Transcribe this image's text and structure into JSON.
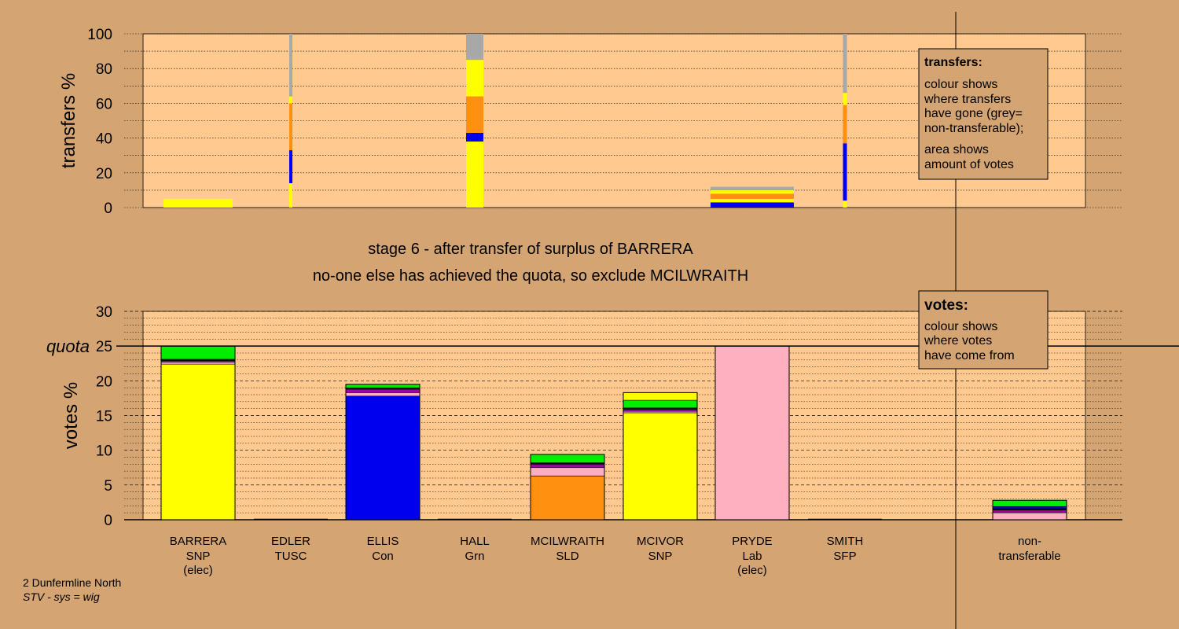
{
  "colors": {
    "background": "#d4a572",
    "plot_area": "#ffc990",
    "SNP": "#ffff00",
    "Con": "#0000ee",
    "SLD": "#ff9010",
    "Lab": "#ffb0c0",
    "Grn": "#00ee00",
    "TUSC": "#a000a0",
    "SFP": "#000000",
    "non_transferable": "#a8a8a8"
  },
  "transfers_legend": {
    "title": "transfers:",
    "lines": [
      "colour shows",
      "where transfers",
      "have gone (grey=",
      "non-transferable);",
      "area shows",
      "amount of votes"
    ]
  },
  "votes_legend": {
    "title": "votes:",
    "lines": [
      "colour shows",
      "where votes",
      "have come from"
    ]
  },
  "stage_title": "stage 6 - after transfer of surplus of BARRERA",
  "stage_subtitle": "no-one else has achieved the quota, so exclude MCILWRAITH",
  "footer": {
    "line1": "2 Dunfermline North",
    "line2": "STV - sys = wig"
  },
  "candidates": [
    {
      "name": "BARRERA",
      "party": "SNP",
      "note": "(elec)"
    },
    {
      "name": "EDLER",
      "party": "TUSC",
      "note": ""
    },
    {
      "name": "ELLIS",
      "party": "Con",
      "note": ""
    },
    {
      "name": "HALL",
      "party": "Grn",
      "note": ""
    },
    {
      "name": "MCILWRAITH",
      "party": "SLD",
      "note": ""
    },
    {
      "name": "MCIVOR",
      "party": "SNP",
      "note": ""
    },
    {
      "name": "PRYDE",
      "party": "Lab",
      "note": "(elec)"
    },
    {
      "name": "SMITH",
      "party": "SFP",
      "note": ""
    },
    {
      "name": "non-",
      "party": "transferable",
      "note": ""
    }
  ],
  "chart_data": [
    {
      "type": "bar",
      "title": "transfers",
      "ylabel": "transfers %",
      "ylim": [
        0,
        100
      ],
      "yticks": [
        0,
        20,
        40,
        60,
        80,
        100
      ],
      "description_bars": [
        {
          "candidate": "BARRERA",
          "segments": [
            {
              "color": "SNP",
              "from": 0,
              "to": 5
            }
          ]
        },
        {
          "candidate": "EDLER",
          "segments": [
            {
              "color": "SNP",
              "from": 0,
              "to": 14
            },
            {
              "color": "Con",
              "from": 14,
              "to": 33
            },
            {
              "color": "SLD",
              "from": 33,
              "to": 60
            },
            {
              "color": "SNP",
              "from": 60,
              "to": 64
            },
            {
              "color": "non_transferable",
              "from": 64,
              "to": 100
            }
          ]
        },
        {
          "candidate": "HALL",
          "segments": [
            {
              "color": "SNP",
              "from": 0,
              "to": 38
            },
            {
              "color": "Con",
              "from": 38,
              "to": 43
            },
            {
              "color": "SLD",
              "from": 43,
              "to": 64
            },
            {
              "color": "SNP",
              "from": 64,
              "to": 85
            },
            {
              "color": "non_transferable",
              "from": 85,
              "to": 100
            }
          ]
        },
        {
          "candidate": "PRYDE",
          "segments": [
            {
              "color": "Con",
              "from": 0,
              "to": 3
            },
            {
              "color": "SNP",
              "from": 3,
              "to": 5
            },
            {
              "color": "SLD",
              "from": 5,
              "to": 8
            },
            {
              "color": "SNP",
              "from": 8,
              "to": 10
            },
            {
              "color": "non_transferable",
              "from": 10,
              "to": 12
            }
          ]
        },
        {
          "candidate": "SMITH",
          "segments": [
            {
              "color": "SNP",
              "from": 0,
              "to": 4
            },
            {
              "color": "Con",
              "from": 4,
              "to": 37
            },
            {
              "color": "SLD",
              "from": 37,
              "to": 59
            },
            {
              "color": "SNP",
              "from": 59,
              "to": 66
            },
            {
              "color": "non_transferable",
              "from": 66,
              "to": 100
            }
          ]
        }
      ]
    },
    {
      "type": "bar",
      "title": "votes",
      "ylabel": "votes %",
      "ylim": [
        0,
        30
      ],
      "yticks": [
        0,
        5,
        10,
        15,
        20,
        25,
        30
      ],
      "quota": 25,
      "quota_label": "quota",
      "stacked_bars": [
        {
          "candidate": "BARRERA",
          "segments": [
            {
              "color": "SNP",
              "value": 22.4
            },
            {
              "color": "Lab",
              "value": 0.3
            },
            {
              "color": "TUSC",
              "value": 0.2
            },
            {
              "color": "SFP",
              "value": 0.2
            },
            {
              "color": "Grn",
              "value": 1.9
            }
          ]
        },
        {
          "candidate": "EDLER",
          "segments": []
        },
        {
          "candidate": "ELLIS",
          "segments": [
            {
              "color": "Con",
              "value": 17.8
            },
            {
              "color": "Lab",
              "value": 0.5
            },
            {
              "color": "TUSC",
              "value": 0.5
            },
            {
              "color": "SFP",
              "value": 0.2
            },
            {
              "color": "Grn",
              "value": 0.5
            }
          ]
        },
        {
          "candidate": "HALL",
          "segments": []
        },
        {
          "candidate": "MCILWRAITH",
          "segments": [
            {
              "color": "SLD",
              "value": 6.3
            },
            {
              "color": "Lab",
              "value": 1.2
            },
            {
              "color": "TUSC",
              "value": 0.5
            },
            {
              "color": "SFP",
              "value": 0.2
            },
            {
              "color": "Grn",
              "value": 1.2
            }
          ]
        },
        {
          "candidate": "MCIVOR",
          "segments": [
            {
              "color": "SNP",
              "value": 15.4
            },
            {
              "color": "Lab",
              "value": 0.2
            },
            {
              "color": "TUSC",
              "value": 0.3
            },
            {
              "color": "SFP",
              "value": 0.2
            },
            {
              "color": "Grn",
              "value": 1.1
            },
            {
              "color": "SNP",
              "value": 1.1
            }
          ]
        },
        {
          "candidate": "PRYDE",
          "segments": [
            {
              "color": "Lab",
              "value": 25.0
            }
          ]
        },
        {
          "candidate": "SMITH",
          "segments": []
        },
        {
          "candidate": "non-transferable",
          "segments": [
            {
              "color": "Lab",
              "value": 1.0
            },
            {
              "color": "TUSC",
              "value": 0.4
            },
            {
              "color": "SFP",
              "value": 0.2
            },
            {
              "color": "Con",
              "value": 0.3
            },
            {
              "color": "Grn",
              "value": 0.9
            }
          ]
        }
      ]
    }
  ]
}
